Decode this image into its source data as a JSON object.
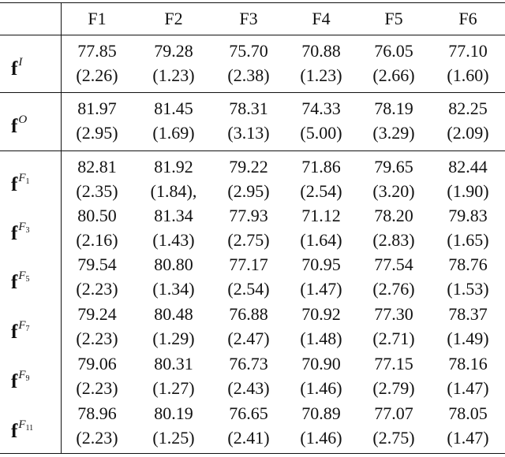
{
  "columns": [
    "F1",
    "F2",
    "F3",
    "F4",
    "F5",
    "F6"
  ],
  "rows": [
    {
      "label": "f",
      "sup": "I",
      "sub": "",
      "means": [
        "77.85",
        "79.28",
        "75.70",
        "70.88",
        "76.05",
        "77.10"
      ],
      "sds": [
        "(2.26)",
        "(1.23)",
        "(2.38)",
        "(1.23)",
        "(2.66)",
        "(1.60)"
      ]
    },
    {
      "label": "f",
      "sup": "O",
      "sub": "",
      "means": [
        "81.97",
        "81.45",
        "78.31",
        "74.33",
        "78.19",
        "82.25"
      ],
      "sds": [
        "(2.95)",
        "(1.69)",
        "(3.13)",
        "(5.00)",
        "(3.29)",
        "(2.09)"
      ]
    },
    {
      "label": "f",
      "sup": "F",
      "sub": "1",
      "means": [
        "82.81",
        "81.92",
        "79.22",
        "71.86",
        "79.65",
        "82.44"
      ],
      "sds": [
        "(2.35)",
        "(1.84),",
        "(2.95)",
        "(2.54)",
        "(3.20)",
        "(1.90)"
      ]
    },
    {
      "label": "f",
      "sup": "F",
      "sub": "3",
      "means": [
        "80.50",
        "81.34",
        "77.93",
        "71.12",
        "78.20",
        "79.83"
      ],
      "sds": [
        "(2.16)",
        "(1.43)",
        "(2.75)",
        "(1.64)",
        "(2.83)",
        "(1.65)"
      ]
    },
    {
      "label": "f",
      "sup": "F",
      "sub": "5",
      "means": [
        "79.54",
        "80.80",
        "77.17",
        "70.95",
        "77.54",
        "78.76"
      ],
      "sds": [
        "(2.23)",
        "(1.34)",
        "(2.54)",
        "(1.47)",
        "(2.76)",
        "(1.53)"
      ]
    },
    {
      "label": "f",
      "sup": "F",
      "sub": "7",
      "means": [
        "79.24",
        "80.48",
        "76.88",
        "70.92",
        "77.30",
        "78.37"
      ],
      "sds": [
        "(2.23)",
        "(1.29)",
        "(2.47)",
        "(1.48)",
        "(2.71)",
        "(1.49)"
      ]
    },
    {
      "label": "f",
      "sup": "F",
      "sub": "9",
      "means": [
        "79.06",
        "80.31",
        "76.73",
        "70.90",
        "77.15",
        "78.16"
      ],
      "sds": [
        "(2.23)",
        "(1.27)",
        "(2.43)",
        "(1.46)",
        "(2.79)",
        "(1.47)"
      ]
    },
    {
      "label": "f",
      "sup": "F",
      "sub": "11",
      "means": [
        "78.96",
        "80.19",
        "76.65",
        "70.89",
        "77.07",
        "78.05"
      ],
      "sds": [
        "(2.23)",
        "(1.25)",
        "(2.41)",
        "(1.46)",
        "(2.75)",
        "(1.47)"
      ]
    }
  ]
}
